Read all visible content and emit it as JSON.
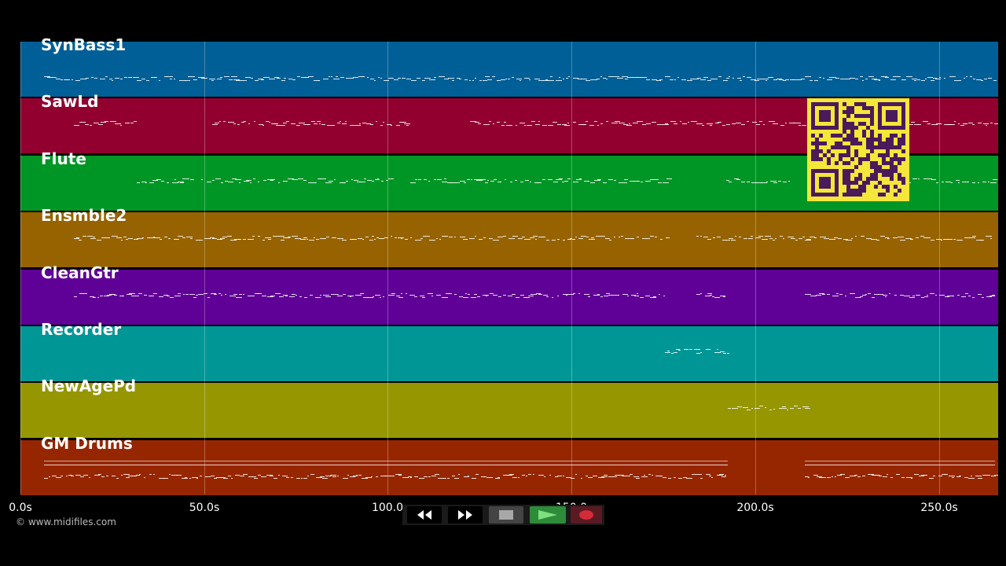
{
  "tracks": [
    {
      "name": "SynBass1",
      "color": "#005f96"
    },
    {
      "name": "SawLd",
      "color": "#920030"
    },
    {
      "name": "Flute",
      "color": "#009626"
    },
    {
      "name": "Ensmble2",
      "color": "#966300"
    },
    {
      "name": "CleanGtr",
      "color": "#5f0096"
    },
    {
      "name": "Recorder",
      "color": "#009696"
    },
    {
      "name": "NewAgePd",
      "color": "#969600"
    },
    {
      "name": "GM Drums",
      "color": "#962600"
    }
  ],
  "timeline": {
    "max_seconds": 266,
    "ticks": [
      {
        "seconds": 0,
        "label": "0.0s"
      },
      {
        "seconds": 50,
        "label": "50.0s"
      },
      {
        "seconds": 100,
        "label": "100.0"
      },
      {
        "seconds": 150,
        "label": "150.0"
      },
      {
        "seconds": 200,
        "label": "200.0s"
      },
      {
        "seconds": 250,
        "label": "250.0s"
      }
    ]
  },
  "copyright": "© www.midifiles.com",
  "transport": {
    "rewind_icon": "rewind-icon",
    "fast_forward_icon": "fast-forward-icon",
    "stop_icon": "stop-icon",
    "play_icon": "play-icon",
    "record_icon": "record-icon",
    "play_color": "#2e8b3a",
    "record_color": "#d42b3a"
  },
  "qr_code": {
    "icon": "qr-code-icon",
    "background": "#f5e63a",
    "foreground": "#4a1a5a"
  }
}
